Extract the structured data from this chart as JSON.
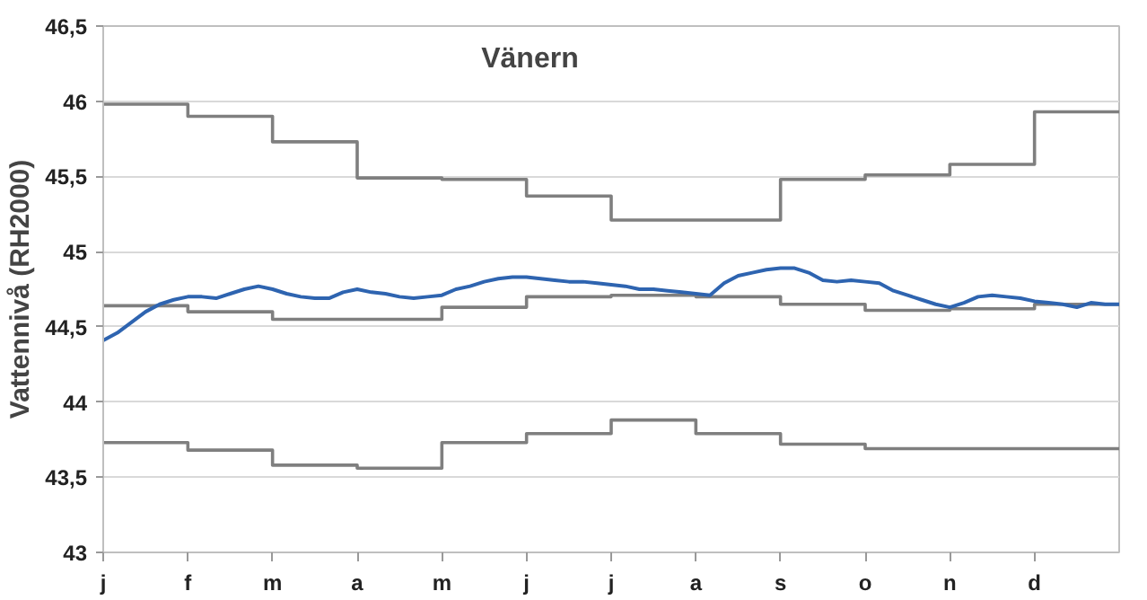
{
  "chart_data": {
    "type": "line",
    "title": "Vänern",
    "ylabel": "Vattennivå (RH2000)",
    "categories": [
      "j",
      null,
      null,
      null,
      null,
      null,
      "f",
      null,
      null,
      null,
      null,
      null,
      "m",
      null,
      null,
      null,
      null,
      null,
      "a",
      null,
      null,
      null,
      null,
      null,
      "m",
      null,
      null,
      null,
      null,
      null,
      "j",
      null,
      null,
      null,
      null,
      null,
      "j",
      null,
      null,
      null,
      null,
      null,
      "a",
      null,
      null,
      null,
      null,
      null,
      "s",
      null,
      null,
      null,
      null,
      null,
      "o",
      null,
      null,
      null,
      null,
      null,
      "n",
      null,
      null,
      null,
      null,
      null,
      "d",
      null,
      null,
      null,
      null,
      null,
      null
    ],
    "ylim": [
      43,
      46.5
    ],
    "yticks": [
      {
        "value": 43,
        "label": "43"
      },
      {
        "value": 43.5,
        "label": "43,5"
      },
      {
        "value": 44,
        "label": "44"
      },
      {
        "value": 44.5,
        "label": "44,5"
      },
      {
        "value": 45,
        "label": "45"
      },
      {
        "value": 45.5,
        "label": "45,5"
      },
      {
        "value": 46,
        "label": "46"
      },
      {
        "value": 46.5,
        "label": "46,5"
      }
    ],
    "grid": "y",
    "marker": "none",
    "line_style": "solid",
    "series": [
      {
        "type": "step",
        "color": "#7f7f7f",
        "values": [
          45.98,
          45.98,
          45.98,
          45.98,
          45.98,
          45.98,
          45.9,
          45.9,
          45.9,
          45.9,
          45.9,
          45.9,
          45.73,
          45.73,
          45.73,
          45.73,
          45.73,
          45.73,
          45.49,
          45.49,
          45.49,
          45.49,
          45.49,
          45.49,
          45.48,
          45.48,
          45.48,
          45.48,
          45.48,
          45.48,
          45.37,
          45.37,
          45.37,
          45.37,
          45.37,
          45.37,
          45.21,
          45.21,
          45.21,
          45.21,
          45.21,
          45.21,
          45.21,
          45.21,
          45.21,
          45.21,
          45.21,
          45.21,
          45.48,
          45.48,
          45.48,
          45.48,
          45.48,
          45.48,
          45.51,
          45.51,
          45.51,
          45.51,
          45.51,
          45.51,
          45.58,
          45.58,
          45.58,
          45.58,
          45.58,
          45.58,
          45.93,
          45.93,
          45.93,
          45.93,
          45.93,
          45.93,
          45.93
        ]
      },
      {
        "type": "step",
        "color": "#7f7f7f",
        "values": [
          44.64,
          44.64,
          44.64,
          44.64,
          44.64,
          44.64,
          44.6,
          44.6,
          44.6,
          44.6,
          44.6,
          44.6,
          44.55,
          44.55,
          44.55,
          44.55,
          44.55,
          44.55,
          44.55,
          44.55,
          44.55,
          44.55,
          44.55,
          44.55,
          44.63,
          44.63,
          44.63,
          44.63,
          44.63,
          44.63,
          44.7,
          44.7,
          44.7,
          44.7,
          44.7,
          44.7,
          44.71,
          44.71,
          44.71,
          44.71,
          44.71,
          44.71,
          44.7,
          44.7,
          44.7,
          44.7,
          44.7,
          44.7,
          44.65,
          44.65,
          44.65,
          44.65,
          44.65,
          44.65,
          44.61,
          44.61,
          44.61,
          44.61,
          44.61,
          44.61,
          44.62,
          44.62,
          44.62,
          44.62,
          44.62,
          44.62,
          44.65,
          44.65,
          44.65,
          44.65,
          44.65,
          44.65,
          44.65
        ]
      },
      {
        "type": "step",
        "color": "#7f7f7f",
        "values": [
          43.73,
          43.73,
          43.73,
          43.73,
          43.73,
          43.73,
          43.68,
          43.68,
          43.68,
          43.68,
          43.68,
          43.68,
          43.58,
          43.58,
          43.58,
          43.58,
          43.58,
          43.58,
          43.56,
          43.56,
          43.56,
          43.56,
          43.56,
          43.56,
          43.73,
          43.73,
          43.73,
          43.73,
          43.73,
          43.73,
          43.79,
          43.79,
          43.79,
          43.79,
          43.79,
          43.79,
          43.88,
          43.88,
          43.88,
          43.88,
          43.88,
          43.88,
          43.79,
          43.79,
          43.79,
          43.79,
          43.79,
          43.79,
          43.72,
          43.72,
          43.72,
          43.72,
          43.72,
          43.72,
          43.69,
          43.69,
          43.69,
          43.69,
          43.69,
          43.69,
          43.69,
          43.69,
          43.69,
          43.69,
          43.69,
          43.69,
          43.69,
          43.69,
          43.69,
          43.69,
          43.69,
          43.69,
          43.69
        ]
      },
      {
        "color": "#2e64b0",
        "values": [
          44.41,
          44.46,
          44.53,
          44.6,
          44.65,
          44.68,
          44.7,
          44.7,
          44.69,
          44.72,
          44.75,
          44.77,
          44.75,
          44.72,
          44.7,
          44.69,
          44.69,
          44.73,
          44.75,
          44.73,
          44.72,
          44.7,
          44.69,
          44.7,
          44.71,
          44.75,
          44.77,
          44.8,
          44.82,
          44.83,
          44.83,
          44.82,
          44.81,
          44.8,
          44.8,
          44.79,
          44.78,
          44.77,
          44.75,
          44.75,
          44.74,
          44.73,
          44.72,
          44.71,
          44.79,
          44.84,
          44.86,
          44.88,
          44.89,
          44.89,
          44.86,
          44.81,
          44.8,
          44.81,
          44.8,
          44.79,
          44.74,
          44.71,
          44.68,
          44.65,
          44.63,
          44.66,
          44.7,
          44.71,
          44.7,
          44.69,
          44.67,
          44.66,
          44.65,
          44.63,
          44.66,
          44.65,
          44.65
        ]
      }
    ]
  }
}
